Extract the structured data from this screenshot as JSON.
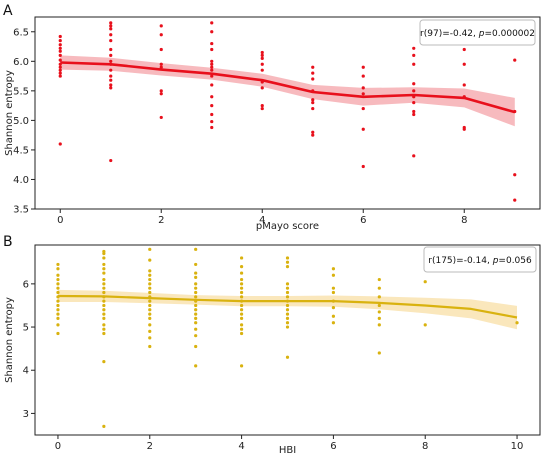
{
  "chart_data": [
    {
      "type": "scatter",
      "panel_label": "A",
      "xlabel": "pMayo score",
      "ylabel": "Shannon entropy",
      "xlim": [
        -0.5,
        9.5
      ],
      "ylim": [
        3.5,
        6.75
      ],
      "xticks": [
        0,
        2,
        4,
        6,
        8
      ],
      "yticks": [
        3.5,
        4.0,
        4.5,
        5.0,
        5.5,
        6.0,
        6.5
      ],
      "ytick_labels": [
        "3.5",
        "4.0",
        "4.5",
        "5.0",
        "5.5",
        "6.0",
        "6.5"
      ],
      "color": "#e8101c",
      "band_color": "#f4a3a8",
      "annotation_prefix": "r(97)=-0.42, ",
      "annotation_p_label": "p",
      "annotation_p_value": "=0.000002",
      "trend": {
        "x": [
          0,
          1,
          2,
          3,
          4,
          5,
          6,
          7,
          8,
          9
        ],
        "y": [
          5.98,
          5.95,
          5.86,
          5.79,
          5.68,
          5.48,
          5.4,
          5.43,
          5.38,
          5.14
        ],
        "lower": [
          5.86,
          5.84,
          5.76,
          5.69,
          5.57,
          5.36,
          5.25,
          5.3,
          5.22,
          4.9
        ],
        "upper": [
          6.1,
          6.06,
          5.97,
          5.89,
          5.79,
          5.6,
          5.55,
          5.56,
          5.54,
          5.38
        ]
      },
      "points": [
        {
          "x": 0,
          "y": [
            6.42,
            6.35,
            6.28,
            6.22,
            6.17,
            6.1,
            6.02,
            5.95,
            5.9,
            5.85,
            5.8,
            5.75,
            4.6
          ]
        },
        {
          "x": 1,
          "y": [
            6.65,
            6.6,
            6.55,
            6.45,
            6.35,
            6.2,
            6.1,
            6.0,
            5.95,
            5.85,
            5.75,
            5.68,
            5.6,
            5.55,
            4.32
          ]
        },
        {
          "x": 2,
          "y": [
            6.6,
            6.45,
            6.2,
            5.95,
            5.9,
            5.5,
            5.45,
            5.05
          ]
        },
        {
          "x": 3,
          "y": [
            6.65,
            6.5,
            6.3,
            6.2,
            6.0,
            5.95,
            5.9,
            5.85,
            5.75,
            5.6,
            5.4,
            5.25,
            5.1,
            4.98,
            4.88
          ]
        },
        {
          "x": 4,
          "y": [
            6.15,
            6.1,
            6.05,
            5.95,
            5.85,
            5.65,
            5.55,
            5.25,
            5.2
          ]
        },
        {
          "x": 5,
          "y": [
            5.9,
            5.8,
            5.7,
            5.5,
            5.35,
            5.3,
            5.2,
            4.8,
            4.75
          ]
        },
        {
          "x": 6,
          "y": [
            5.9,
            5.75,
            5.55,
            5.45,
            5.2,
            4.85,
            4.22
          ]
        },
        {
          "x": 7,
          "y": [
            6.22,
            6.1,
            5.95,
            5.62,
            5.5,
            5.4,
            5.3,
            5.15,
            5.1,
            4.4
          ]
        },
        {
          "x": 8,
          "y": [
            6.35,
            6.2,
            5.95,
            5.6,
            5.4,
            4.88,
            4.85
          ]
        },
        {
          "x": 9,
          "y": [
            6.02,
            5.15,
            4.08,
            3.65
          ]
        }
      ]
    },
    {
      "type": "scatter",
      "panel_label": "B",
      "xlabel": "HBI",
      "ylabel": "Shannon entropy",
      "xlim": [
        -0.5,
        10.5
      ],
      "ylim": [
        2.5,
        6.9
      ],
      "xticks": [
        0,
        2,
        4,
        6,
        8,
        10
      ],
      "yticks": [
        3,
        4,
        5,
        6
      ],
      "ytick_labels": [
        "3",
        "4",
        "5",
        "6"
      ],
      "color": "#d9b20f",
      "band_color": "#f8dfa6",
      "annotation_prefix": "r(175)=-0.14, ",
      "annotation_p_label": "p",
      "annotation_p_value": "=0.056",
      "trend": {
        "x": [
          0,
          1,
          2,
          3,
          4,
          5,
          6,
          7,
          8,
          9,
          10
        ],
        "y": [
          5.72,
          5.71,
          5.67,
          5.63,
          5.6,
          5.6,
          5.6,
          5.56,
          5.5,
          5.42,
          5.22
        ],
        "lower": [
          5.58,
          5.58,
          5.55,
          5.52,
          5.48,
          5.48,
          5.47,
          5.41,
          5.32,
          5.2,
          4.95
        ],
        "upper": [
          5.86,
          5.84,
          5.79,
          5.74,
          5.72,
          5.72,
          5.73,
          5.71,
          5.68,
          5.64,
          5.49
        ]
      },
      "points": [
        {
          "x": 0,
          "y": [
            6.45,
            6.35,
            6.2,
            6.1,
            6.0,
            5.9,
            5.8,
            5.7,
            5.6,
            5.5,
            5.4,
            5.3,
            5.2,
            5.05,
            4.85
          ]
        },
        {
          "x": 1,
          "y": [
            6.75,
            6.7,
            6.6,
            6.45,
            6.35,
            6.25,
            6.1,
            6.0,
            5.9,
            5.8,
            5.7,
            5.6,
            5.5,
            5.4,
            5.3,
            5.2,
            5.05,
            4.95,
            4.85,
            4.2,
            2.7
          ]
        },
        {
          "x": 2,
          "y": [
            6.8,
            6.55,
            6.3,
            6.2,
            6.1,
            6.0,
            5.9,
            5.8,
            5.7,
            5.6,
            5.5,
            5.4,
            5.3,
            5.2,
            5.05,
            4.9,
            4.75,
            4.55
          ]
        },
        {
          "x": 3,
          "y": [
            6.8,
            6.45,
            6.25,
            6.15,
            6.0,
            5.9,
            5.8,
            5.7,
            5.6,
            5.5,
            5.4,
            5.3,
            5.2,
            5.1,
            4.95,
            4.8,
            4.55,
            4.1
          ]
        },
        {
          "x": 4,
          "y": [
            6.6,
            6.4,
            6.25,
            6.1,
            6.0,
            5.9,
            5.8,
            5.7,
            5.6,
            5.5,
            5.4,
            5.3,
            5.2,
            5.05,
            4.95,
            4.85,
            4.1
          ]
        },
        {
          "x": 5,
          "y": [
            6.6,
            6.5,
            6.4,
            6.0,
            5.9,
            5.8,
            5.7,
            5.6,
            5.5,
            5.4,
            5.3,
            5.2,
            5.1,
            5.0,
            4.3
          ]
        },
        {
          "x": 6,
          "y": [
            6.35,
            6.2,
            5.9,
            5.8,
            5.6,
            5.45,
            5.25,
            5.1
          ]
        },
        {
          "x": 7,
          "y": [
            6.1,
            5.9,
            5.7,
            5.5,
            5.35,
            5.2,
            5.05,
            4.4
          ]
        },
        {
          "x": 8,
          "y": [
            6.05,
            5.05
          ]
        },
        {
          "x": 10,
          "y": [
            5.1
          ]
        }
      ]
    }
  ]
}
